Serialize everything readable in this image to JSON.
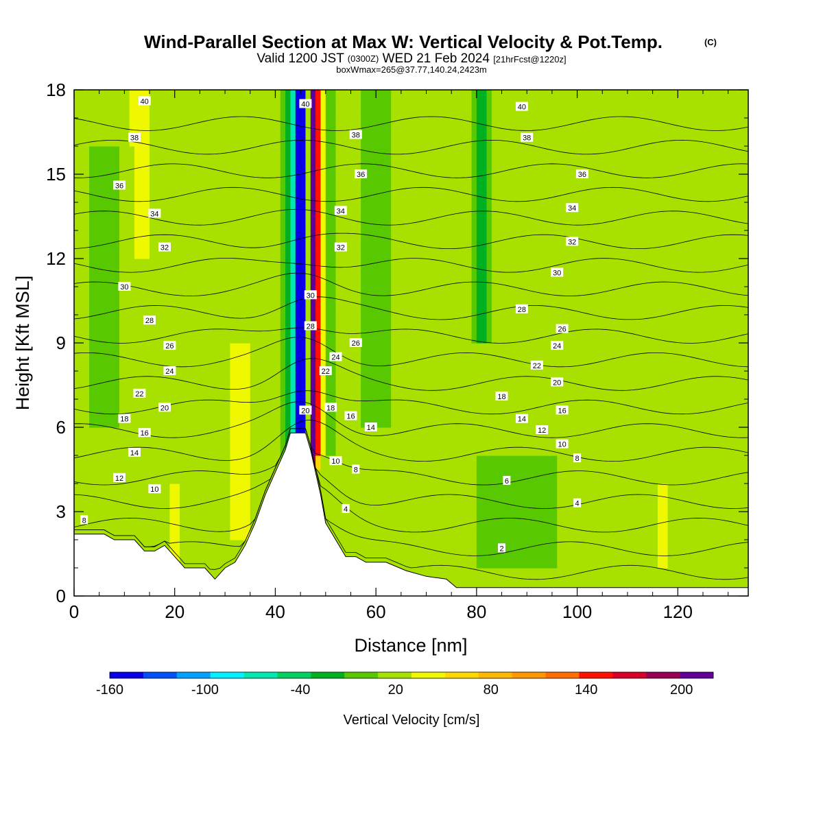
{
  "header": {
    "title": "Wind-Parallel Section at Max W: Vertical Velocity & Pot.Temp.",
    "copyright": "(C)",
    "valid_prefix": "Valid 1200 JST",
    "valid_zulu": "(0300Z)",
    "valid_date": "WED 21 Feb 2024",
    "forecast_info": "[21hrFcst@1220z]",
    "box_info": "boxWmax=265@37.77,140.24,2423m"
  },
  "chart_data": {
    "type": "heatmap",
    "title": "Wind-Parallel Section at Max W: Vertical Velocity & Pot.Temp.",
    "xlabel": "Distance [nm]",
    "ylabel": "Height [Kft MSL]",
    "xlim": [
      0,
      134
    ],
    "ylim": [
      0,
      18
    ],
    "x_ticks": [
      0,
      20,
      40,
      60,
      80,
      100,
      120
    ],
    "y_ticks": [
      0,
      3,
      6,
      9,
      12,
      15,
      18
    ],
    "colorbar": {
      "label": "Vertical Velocity [cm/s]",
      "tick_labels": [
        "-160",
        "-100",
        "-40",
        "20",
        "80",
        "140",
        "200"
      ],
      "tick_values": [
        -160,
        -100,
        -40,
        20,
        80,
        140,
        200
      ],
      "bounds": [
        -160,
        220
      ],
      "step": 20,
      "colors": [
        "#0a00e8",
        "#0050f8",
        "#00a0ff",
        "#00f0ff",
        "#00e8b0",
        "#00d060",
        "#00b020",
        "#58c800",
        "#a8e000",
        "#f0f800",
        "#ffd800",
        "#ffb800",
        "#ff9800",
        "#ff6c00",
        "#ff1000",
        "#d80028",
        "#980058",
        "#600098"
      ]
    },
    "background_value_cm_s": 10,
    "terrain_kft": [
      [
        0,
        2.2
      ],
      [
        6,
        2.2
      ],
      [
        8,
        2.0
      ],
      [
        12,
        2.0
      ],
      [
        14,
        1.6
      ],
      [
        16,
        1.6
      ],
      [
        18,
        1.8
      ],
      [
        20,
        1.4
      ],
      [
        22,
        1.0
      ],
      [
        26,
        1.0
      ],
      [
        28,
        0.6
      ],
      [
        30,
        1.0
      ],
      [
        32,
        1.2
      ],
      [
        34,
        1.8
      ],
      [
        36,
        2.6
      ],
      [
        38,
        3.6
      ],
      [
        40,
        4.4
      ],
      [
        42,
        5.2
      ],
      [
        43,
        5.8
      ],
      [
        46,
        5.8
      ],
      [
        47,
        5.2
      ],
      [
        48,
        4.4
      ],
      [
        49,
        3.6
      ],
      [
        50,
        2.6
      ],
      [
        52,
        2.0
      ],
      [
        54,
        1.4
      ],
      [
        56,
        1.4
      ],
      [
        58,
        1.2
      ],
      [
        62,
        1.2
      ],
      [
        66,
        0.9
      ],
      [
        70,
        0.7
      ],
      [
        74,
        0.6
      ],
      [
        76,
        0.3
      ],
      [
        82,
        0.3
      ],
      [
        100,
        0.3
      ],
      [
        134,
        0.3
      ]
    ],
    "velocity_features": [
      {
        "x": 47.5,
        "z_bottom": 4.5,
        "z_top": 18,
        "value": 190,
        "x_half_width": 0.9
      },
      {
        "x": 48.5,
        "z_bottom": 5.0,
        "z_top": 18,
        "value": 80,
        "x_half_width": 1.8
      },
      {
        "x": 45.3,
        "z_bottom": 5.2,
        "z_top": 18,
        "value": -120,
        "x_half_width": 1.2
      },
      {
        "x": 44.5,
        "z_bottom": 4.0,
        "z_top": 18,
        "value": -60,
        "x_half_width": 2.2
      },
      {
        "x": 50.5,
        "z_bottom": 5.0,
        "z_top": 18,
        "value": -40,
        "x_half_width": 1.2
      },
      {
        "x": 13,
        "z_bottom": 12.0,
        "z_top": 18,
        "value": 40,
        "x_half_width": 1.5
      },
      {
        "x": 33,
        "z_bottom": 2.0,
        "z_top": 9.0,
        "value": 40,
        "x_half_width": 2.0
      },
      {
        "x": 20,
        "z_bottom": 1.0,
        "z_top": 4.0,
        "value": 40,
        "x_half_width": 1.0
      },
      {
        "x": 60,
        "z_bottom": 6.0,
        "z_top": 18,
        "value": -20,
        "x_half_width": 3.0
      },
      {
        "x": 81,
        "z_bottom": 9.0,
        "z_top": 18,
        "value": -40,
        "x_half_width": 1.5
      },
      {
        "x": 88,
        "z_bottom": 1.0,
        "z_top": 5.0,
        "value": -20,
        "x_half_width": 8.0
      },
      {
        "x": 117,
        "z_bottom": 1.0,
        "z_top": 4.0,
        "value": 60,
        "x_half_width": 0.5
      },
      {
        "x": 6,
        "z_bottom": 6.0,
        "z_top": 16.0,
        "value": -20,
        "x_half_width": 3.0
      }
    ],
    "potential_temperature_levels": [
      2,
      4,
      6,
      8,
      10,
      12,
      14,
      16,
      18,
      20,
      22,
      24,
      26,
      28,
      30,
      32,
      34,
      36,
      38,
      40
    ],
    "contour_labels": [
      {
        "text": "40",
        "x": 14,
        "y": 17.6
      },
      {
        "text": "38",
        "x": 12,
        "y": 16.3
      },
      {
        "text": "36",
        "x": 9,
        "y": 14.6
      },
      {
        "text": "34",
        "x": 16,
        "y": 13.6
      },
      {
        "text": "32",
        "x": 18,
        "y": 12.4
      },
      {
        "text": "30",
        "x": 10,
        "y": 11.0
      },
      {
        "text": "28",
        "x": 15,
        "y": 9.8
      },
      {
        "text": "26",
        "x": 19,
        "y": 8.9
      },
      {
        "text": "24",
        "x": 19,
        "y": 8.0
      },
      {
        "text": "22",
        "x": 13,
        "y": 7.2
      },
      {
        "text": "20",
        "x": 18,
        "y": 6.7
      },
      {
        "text": "18",
        "x": 10,
        "y": 6.3
      },
      {
        "text": "16",
        "x": 14,
        "y": 5.8
      },
      {
        "text": "14",
        "x": 12,
        "y": 5.1
      },
      {
        "text": "12",
        "x": 9,
        "y": 4.2
      },
      {
        "text": "10",
        "x": 16,
        "y": 3.8
      },
      {
        "text": "8",
        "x": 2,
        "y": 2.7
      },
      {
        "text": "40",
        "x": 46,
        "y": 17.5
      },
      {
        "text": "38",
        "x": 56,
        "y": 16.4
      },
      {
        "text": "36",
        "x": 57,
        "y": 15.0
      },
      {
        "text": "34",
        "x": 53,
        "y": 13.7
      },
      {
        "text": "32",
        "x": 53,
        "y": 12.4
      },
      {
        "text": "30",
        "x": 47,
        "y": 10.7
      },
      {
        "text": "28",
        "x": 47,
        "y": 9.6
      },
      {
        "text": "26",
        "x": 56,
        "y": 9.0
      },
      {
        "text": "24",
        "x": 52,
        "y": 8.5
      },
      {
        "text": "22",
        "x": 50,
        "y": 8.0
      },
      {
        "text": "20",
        "x": 46,
        "y": 6.6
      },
      {
        "text": "18",
        "x": 51,
        "y": 6.7
      },
      {
        "text": "16",
        "x": 55,
        "y": 6.4
      },
      {
        "text": "14",
        "x": 59,
        "y": 6.0
      },
      {
        "text": "10",
        "x": 52,
        "y": 4.8
      },
      {
        "text": "8",
        "x": 56,
        "y": 4.5
      },
      {
        "text": "4",
        "x": 54,
        "y": 3.1
      },
      {
        "text": "40",
        "x": 89,
        "y": 17.4
      },
      {
        "text": "38",
        "x": 90,
        "y": 16.3
      },
      {
        "text": "36",
        "x": 101,
        "y": 15.0
      },
      {
        "text": "34",
        "x": 99,
        "y": 13.8
      },
      {
        "text": "32",
        "x": 99,
        "y": 12.6
      },
      {
        "text": "30",
        "x": 96,
        "y": 11.5
      },
      {
        "text": "28",
        "x": 89,
        "y": 10.2
      },
      {
        "text": "26",
        "x": 97,
        "y": 9.5
      },
      {
        "text": "24",
        "x": 96,
        "y": 8.9
      },
      {
        "text": "22",
        "x": 92,
        "y": 8.2
      },
      {
        "text": "20",
        "x": 96,
        "y": 7.6
      },
      {
        "text": "18",
        "x": 85,
        "y": 7.1
      },
      {
        "text": "16",
        "x": 97,
        "y": 6.6
      },
      {
        "text": "14",
        "x": 89,
        "y": 6.3
      },
      {
        "text": "12",
        "x": 93,
        "y": 5.9
      },
      {
        "text": "10",
        "x": 97,
        "y": 5.4
      },
      {
        "text": "8",
        "x": 100,
        "y": 4.9
      },
      {
        "text": "6",
        "x": 86,
        "y": 4.1
      },
      {
        "text": "4",
        "x": 100,
        "y": 3.3
      },
      {
        "text": "2",
        "x": 85,
        "y": 1.7
      }
    ]
  }
}
